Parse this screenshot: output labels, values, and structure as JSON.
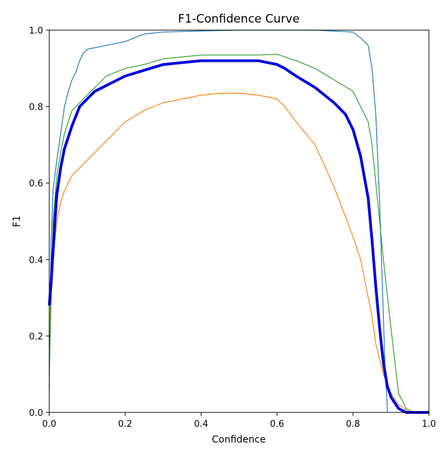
{
  "chart_data": {
    "type": "line",
    "title": "F1-Confidence Curve",
    "xlabel": "Confidence",
    "ylabel": "F1",
    "xlim": [
      0.0,
      1.0
    ],
    "ylim": [
      0.0,
      1.0
    ],
    "grid": false,
    "x_ticks": [
      "0.0",
      "0.2",
      "0.4",
      "0.6",
      "0.8",
      "1.0"
    ],
    "y_ticks": [
      "0.0",
      "0.2",
      "0.4",
      "0.6",
      "0.8",
      "1.0"
    ],
    "series": [
      {
        "color": "#1f77b4",
        "line_width": 1.2,
        "x": [
          0.0,
          0.005,
          0.01,
          0.02,
          0.03,
          0.04,
          0.05,
          0.06,
          0.07,
          0.08,
          0.09,
          0.1,
          0.15,
          0.2,
          0.25,
          0.3,
          0.4,
          0.5,
          0.6,
          0.7,
          0.8,
          0.82,
          0.84,
          0.85,
          0.86,
          0.87,
          0.88,
          0.885,
          0.89,
          0.89
        ],
        "y": [
          0.06,
          0.45,
          0.58,
          0.66,
          0.73,
          0.8,
          0.84,
          0.87,
          0.89,
          0.92,
          0.94,
          0.95,
          0.96,
          0.97,
          0.99,
          0.995,
          0.998,
          1.0,
          1.0,
          1.0,
          0.995,
          0.98,
          0.96,
          0.9,
          0.78,
          0.55,
          0.25,
          0.1,
          0.02,
          0.0
        ]
      },
      {
        "color": "#ff7f0e",
        "line_width": 1.2,
        "x": [
          0.0,
          0.005,
          0.01,
          0.02,
          0.03,
          0.04,
          0.05,
          0.06,
          0.08,
          0.1,
          0.12,
          0.15,
          0.2,
          0.25,
          0.3,
          0.35,
          0.4,
          0.45,
          0.5,
          0.55,
          0.6,
          0.62,
          0.65,
          0.7,
          0.75,
          0.8,
          0.82,
          0.84,
          0.85,
          0.86,
          0.88,
          0.9,
          0.92,
          0.95
        ],
        "y": [
          0.2,
          0.3,
          0.4,
          0.5,
          0.55,
          0.58,
          0.6,
          0.62,
          0.64,
          0.66,
          0.68,
          0.71,
          0.76,
          0.79,
          0.81,
          0.82,
          0.83,
          0.835,
          0.835,
          0.83,
          0.82,
          0.8,
          0.76,
          0.7,
          0.59,
          0.46,
          0.4,
          0.3,
          0.25,
          0.18,
          0.1,
          0.05,
          0.02,
          0.0
        ]
      },
      {
        "color": "#2ca02c",
        "line_width": 1.2,
        "x": [
          0.0,
          0.005,
          0.01,
          0.02,
          0.03,
          0.04,
          0.05,
          0.06,
          0.08,
          0.1,
          0.12,
          0.15,
          0.2,
          0.25,
          0.3,
          0.35,
          0.4,
          0.45,
          0.5,
          0.55,
          0.6,
          0.62,
          0.65,
          0.7,
          0.75,
          0.8,
          0.82,
          0.84,
          0.85,
          0.86,
          0.87,
          0.88,
          0.9,
          0.92,
          0.94,
          0.96
        ],
        "y": [
          0.1,
          0.3,
          0.5,
          0.62,
          0.68,
          0.73,
          0.76,
          0.79,
          0.81,
          0.83,
          0.85,
          0.88,
          0.9,
          0.91,
          0.925,
          0.93,
          0.935,
          0.935,
          0.935,
          0.935,
          0.937,
          0.93,
          0.92,
          0.9,
          0.87,
          0.84,
          0.8,
          0.76,
          0.7,
          0.6,
          0.5,
          0.4,
          0.22,
          0.05,
          0.01,
          0.0
        ]
      },
      {
        "color": "#0000dd",
        "line_width": 4,
        "x": [
          0.0,
          0.005,
          0.01,
          0.015,
          0.02,
          0.03,
          0.04,
          0.05,
          0.06,
          0.08,
          0.1,
          0.12,
          0.15,
          0.2,
          0.25,
          0.3,
          0.35,
          0.4,
          0.45,
          0.5,
          0.55,
          0.6,
          0.62,
          0.65,
          0.7,
          0.75,
          0.78,
          0.8,
          0.82,
          0.84,
          0.85,
          0.86,
          0.87,
          0.88,
          0.89,
          0.9,
          0.92,
          0.94,
          0.96,
          1.0
        ],
        "y": [
          0.28,
          0.34,
          0.42,
          0.5,
          0.57,
          0.64,
          0.69,
          0.72,
          0.75,
          0.8,
          0.82,
          0.84,
          0.855,
          0.88,
          0.895,
          0.91,
          0.915,
          0.92,
          0.92,
          0.92,
          0.92,
          0.91,
          0.9,
          0.88,
          0.85,
          0.81,
          0.78,
          0.74,
          0.67,
          0.56,
          0.45,
          0.33,
          0.22,
          0.13,
          0.07,
          0.04,
          0.01,
          0.0,
          0.0,
          0.0
        ]
      }
    ]
  }
}
